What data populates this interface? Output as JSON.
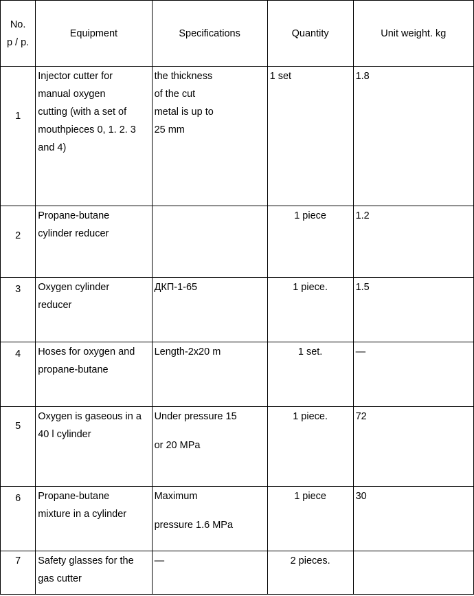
{
  "headers": {
    "no_line1": "No.",
    "no_line2": "p / p.",
    "equipment": "Equipment",
    "specifications": "Specifications",
    "quantity": "Quantity",
    "unit_weight": "Unit weight. kg"
  },
  "rows": [
    {
      "no": "1",
      "equipment": [
        "Injector cutter for",
        "manual oxygen",
        "cutting (with a set of",
        "mouthpieces 0, 1. 2. 3",
        "and 4)"
      ],
      "spec": [
        "the thickness",
        "of the cut",
        "metal is up to",
        "25 mm"
      ],
      "quantity": "1 set",
      "weight": "1.8"
    },
    {
      "no": "2",
      "equipment": [
        "Propane-butane",
        "cylinder reducer"
      ],
      "spec": [],
      "quantity": "1 piece",
      "weight": "1.2"
    },
    {
      "no": "3",
      "equipment": [
        "Oxygen cylinder",
        "reducer"
      ],
      "spec": [
        "ДКП-1-65"
      ],
      "quantity": "1 piece.",
      "weight": "1.5"
    },
    {
      "no": "4",
      "equipment": [
        "Hoses for oxygen and",
        "propane-butane"
      ],
      "spec": [
        "Length-2x20 m"
      ],
      "quantity": "1 set.",
      "weight": "—"
    },
    {
      "no": "5",
      "equipment": [
        "Oxygen is gaseous in a",
        "40 l cylinder"
      ],
      "spec": [
        "Under pressure 15",
        "or 20 MPa"
      ],
      "quantity": "1 piece.",
      "weight": "72"
    },
    {
      "no": "6",
      "equipment": [
        "Propane-butane",
        "mixture in a cylinder"
      ],
      "spec": [
        "Maximum",
        "pressure 1.6 MPa"
      ],
      "quantity": "1 piece",
      "weight": "30"
    },
    {
      "no": "7",
      "equipment": [
        "Safety glasses for the",
        "gas cutter"
      ],
      "spec": [
        "—"
      ],
      "quantity": "2 pieces.",
      "weight": ""
    }
  ]
}
